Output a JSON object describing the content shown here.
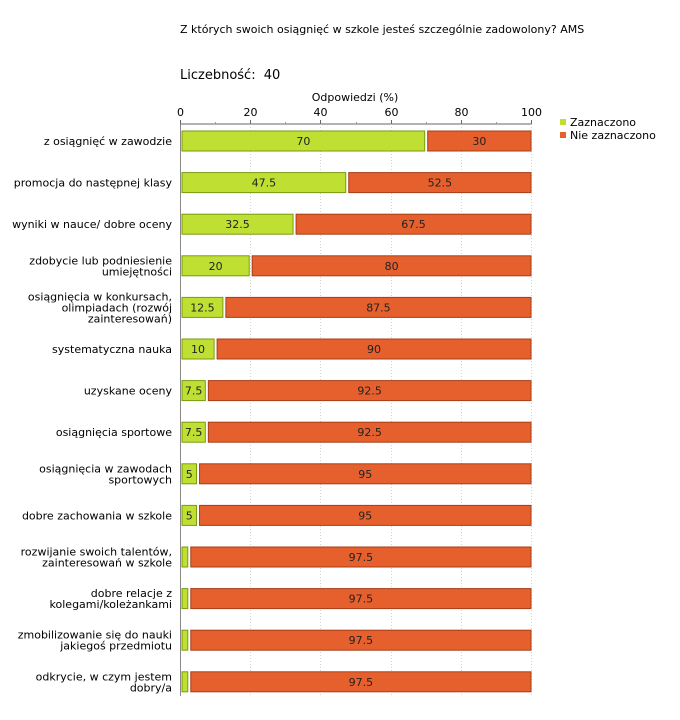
{
  "chart_data": {
    "type": "bar",
    "stacked": true,
    "orientation": "horizontal",
    "title": "Z których swoich osiągnięć w szkole jesteś szczególnie zadowolony? AMS",
    "count_label": "Liczebność:",
    "count_value": "40",
    "xlabel": "Odpowiedzi (%)",
    "xlim": [
      0,
      100
    ],
    "xticks": [
      "0",
      "20",
      "40",
      "60",
      "80",
      "100"
    ],
    "legend_position": "top-right",
    "categories": [
      [
        "z osiągnięć w zawodzie"
      ],
      [
        "promocja do następnej klasy"
      ],
      [
        "wyniki w nauce/ dobre oceny"
      ],
      [
        "zdobycie lub podniesienie",
        "umiejętności"
      ],
      [
        "osiągnięcia w konkursach,",
        "olimpiadach (rozwój",
        "zainteresowań)"
      ],
      [
        "systematyczna nauka"
      ],
      [
        "uzyskane oceny"
      ],
      [
        "osiągnięcia sportowe"
      ],
      [
        "osiągnięcia w zawodach",
        "sportowych"
      ],
      [
        "dobre zachowania w szkole"
      ],
      [
        "rozwijanie swoich talentów,",
        "zainteresowań w szkole"
      ],
      [
        "dobre relacje z",
        "kolegami/koleżankami"
      ],
      [
        "zmobilizowanie się do nauki",
        "jakiegoś przedmiotu"
      ],
      [
        "odkrycie, w czym jestem",
        "dobry/a"
      ]
    ],
    "series": [
      {
        "name": "Zaznaczono",
        "color": "#bfe033",
        "stroke": "#7a9a10",
        "values": [
          70,
          47.5,
          32.5,
          20,
          12.5,
          10,
          7.5,
          7.5,
          5,
          5,
          2.5,
          2.5,
          2.5,
          2.5
        ],
        "labels": [
          "70",
          "47.5",
          "32.5",
          "20",
          "12.5",
          "10",
          "7.5",
          "7.5",
          "5",
          "5",
          "",
          "",
          "",
          ""
        ]
      },
      {
        "name": "Nie zaznaczono",
        "color": "#e5602d",
        "stroke": "#a83e18",
        "values": [
          30,
          52.5,
          67.5,
          80,
          87.5,
          90,
          92.5,
          92.5,
          95,
          95,
          97.5,
          97.5,
          97.5,
          97.5
        ],
        "labels": [
          "30",
          "52.5",
          "67.5",
          "80",
          "87.5",
          "90",
          "92.5",
          "92.5",
          "95",
          "95",
          "97.5",
          "97.5",
          "97.5",
          "97.5"
        ]
      }
    ]
  }
}
